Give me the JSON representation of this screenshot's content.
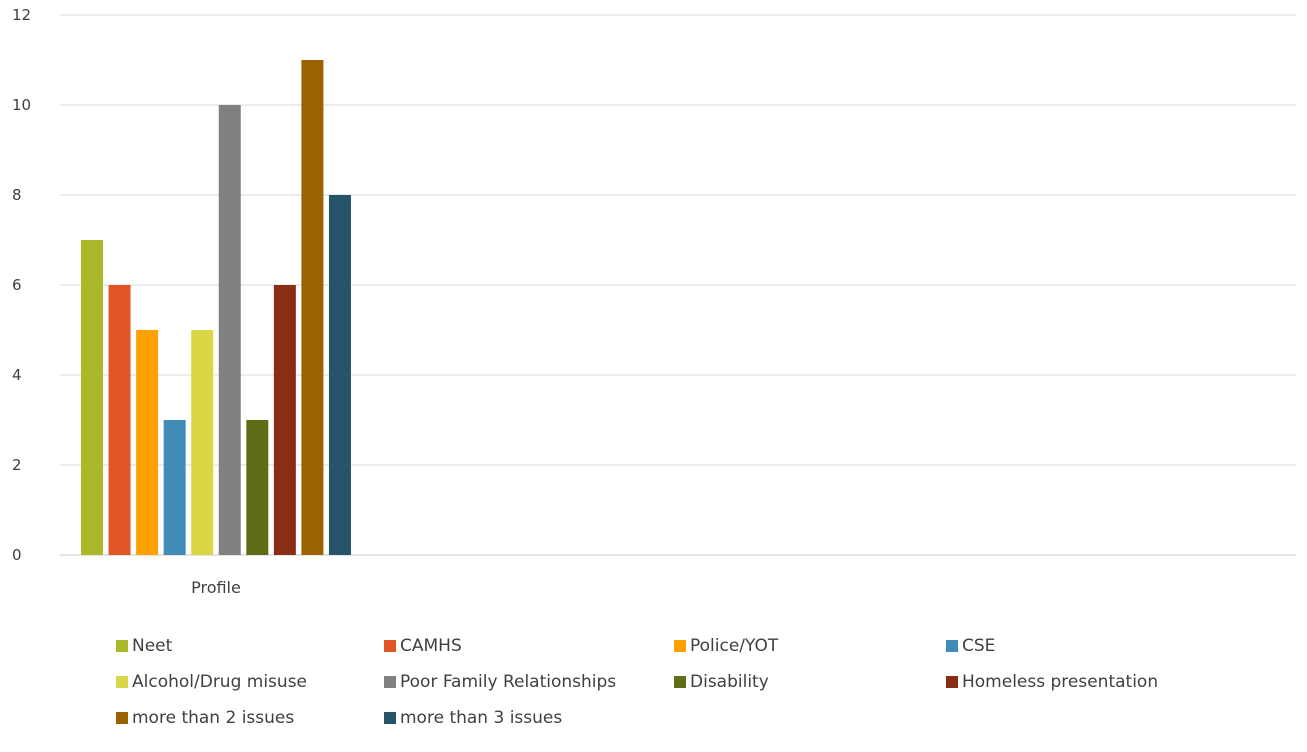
{
  "chart_data": {
    "type": "bar",
    "categories": [
      "Profile"
    ],
    "series": [
      {
        "name": "Neet",
        "values": [
          7
        ],
        "color": "#A9B92A"
      },
      {
        "name": "CAMHS",
        "values": [
          6
        ],
        "color": "#E05426"
      },
      {
        "name": "Police/YOT",
        "values": [
          5
        ],
        "color": "#FFA102"
      },
      {
        "name": "CSE",
        "values": [
          3
        ],
        "color": "#3F8DB7"
      },
      {
        "name": "Alcohol/Drug misuse",
        "values": [
          5
        ],
        "color": "#D9D746"
      },
      {
        "name": "Poor Family Relationships",
        "values": [
          10
        ],
        "color": "#808080"
      },
      {
        "name": "Disability",
        "values": [
          3
        ],
        "color": "#5F6E16"
      },
      {
        "name": "Homeless presentation",
        "values": [
          6
        ],
        "color": "#8B2C14"
      },
      {
        "name": "more than 2 issues",
        "values": [
          11
        ],
        "color": "#9C6100"
      },
      {
        "name": "more than 3 issues",
        "values": [
          8
        ],
        "color": "#255469"
      }
    ],
    "ylim": [
      0,
      12
    ],
    "yticks": [
      0,
      2,
      4,
      6,
      8,
      10,
      12
    ],
    "grid": true,
    "legend_position": "bottom",
    "title": "",
    "xlabel": "",
    "ylabel": ""
  }
}
